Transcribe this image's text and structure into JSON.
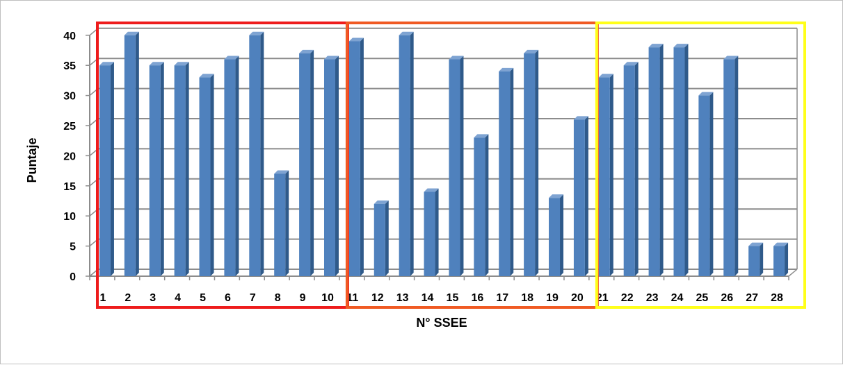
{
  "chart_data": {
    "type": "bar",
    "categories": [
      "1",
      "2",
      "3",
      "4",
      "5",
      "6",
      "7",
      "8",
      "9",
      "10",
      "11",
      "12",
      "13",
      "14",
      "15",
      "16",
      "17",
      "18",
      "19",
      "20",
      "21",
      "22",
      "23",
      "24",
      "25",
      "26",
      "27",
      "28"
    ],
    "values": [
      35,
      40,
      35,
      35,
      33,
      36,
      40,
      17,
      37,
      36,
      39,
      12,
      40,
      14,
      36,
      23,
      34,
      37,
      13,
      26,
      33,
      35,
      38,
      38,
      30,
      36,
      5,
      5
    ],
    "xlabel": "N° SSEE",
    "ylabel": "Puntaje",
    "ylim": [
      0,
      40
    ],
    "yticks": [
      "0",
      "5",
      "10",
      "15",
      "20",
      "25",
      "30",
      "35",
      "40"
    ],
    "grid": true,
    "legend": "none",
    "bar_color": "#4f81bd",
    "groups": [
      {
        "range": [
          1,
          10
        ],
        "color": "#ee1c1c"
      },
      {
        "range": [
          11,
          20
        ],
        "color": "#f05a23"
      },
      {
        "range": [
          21,
          28
        ],
        "color": "#ffff1a"
      }
    ]
  }
}
